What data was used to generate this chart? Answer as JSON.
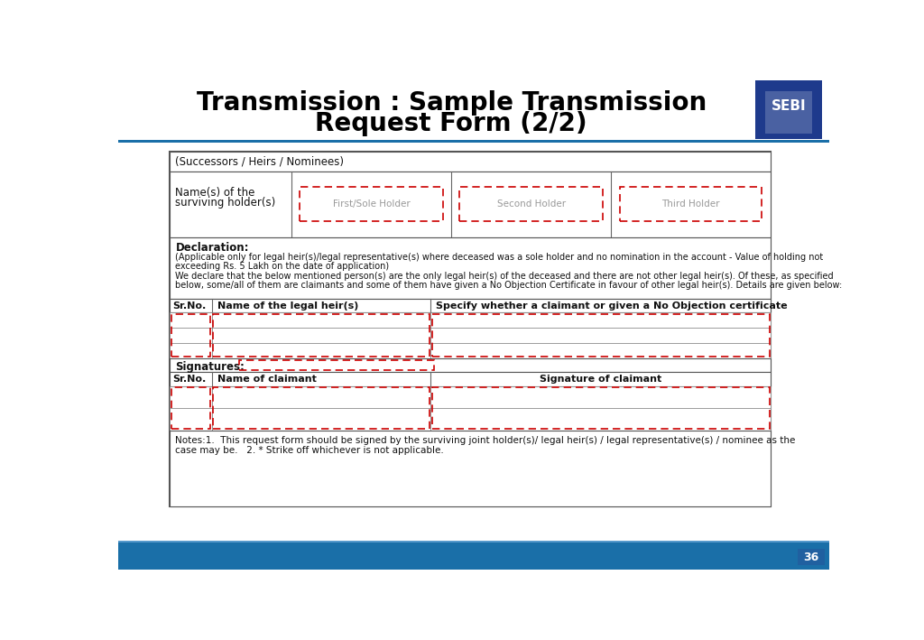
{
  "title_line1": "Transmission : Sample Transmission",
  "title_line2": "Request Form (2/2)",
  "title_color": "#000000",
  "title_fontsize": 20,
  "header_bar_color": "#1a6fa8",
  "footer_bar_color": "#1a6fa8",
  "page_number": "36",
  "page_num_bg": "#2060a0",
  "sebi_logo_color": "#1e3a8c",
  "form_bg": "#ffffff",
  "border_color": "#666666",
  "red_dash_color": "#cc0000",
  "successors_header": "(Successors / Heirs / Nominees)",
  "name_surviving_label1": "Name(s) of the",
  "name_surviving_label2": "surviving holder(s)",
  "holder1_label": "First/Sole Holder",
  "holder2_label": "Second Holder",
  "holder3_label": "Third Holder",
  "declaration_title": "Declaration:",
  "declaration_text1": "(Applicable only for legal heir(s)/legal representative(s) where deceased was a sole holder and no nomination in the account - Value of holding not",
  "declaration_text1b": "exceeding Rs. 5 Lakh on the date of application)",
  "declaration_text2": "We declare that the below mentioned person(s) are the only legal heir(s) of the deceased and there are not other legal heir(s). Of these, as specified",
  "declaration_text2b": "below, some/all of them are claimants and some of them have given a No Objection Certificate in favour of other legal heir(s). Details are given below:",
  "heir_col1": "Sr.No.",
  "heir_col2": "Name of the legal heir(s)",
  "heir_col3": "Specify whether a claimant or given a No Objection certificate",
  "signatures_label": "Signatures:",
  "claimant_col1": "Sr.No.",
  "claimant_col2": "Name of claimant",
  "claimant_col3": "Signature of claimant",
  "notes_text1": "Notes:1.  This request form should be signed by the surviving joint holder(s)/ legal heir(s) / legal representative(s) / nominee as the",
  "notes_text2": "case may be.   2. * Strike off whichever is not applicable."
}
